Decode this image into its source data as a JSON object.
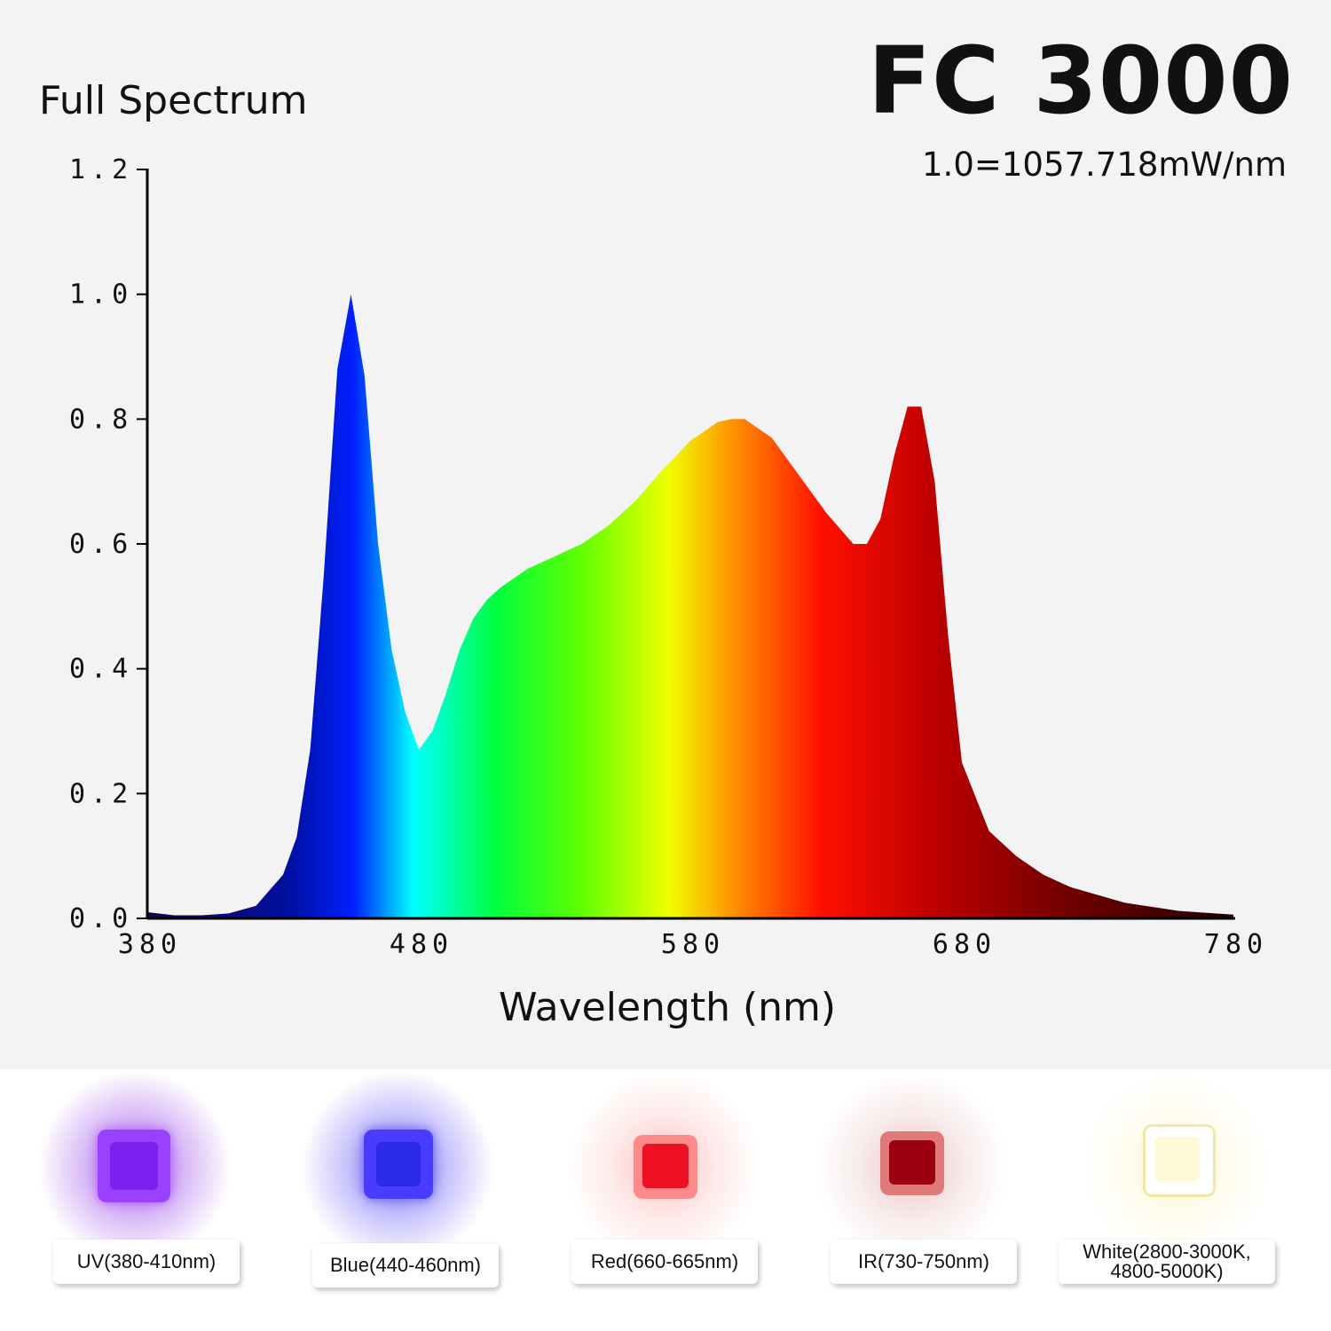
{
  "header": {
    "subtitle": "Full Spectrum",
    "product": "FC 3000",
    "scale_note": "1.0=1057.718mW/nm"
  },
  "chart_data": {
    "type": "area",
    "title": "Full Spectrum",
    "xlabel": "Wavelength (nm)",
    "ylabel": "",
    "xlim": [
      380,
      780
    ],
    "ylim": [
      0,
      1.2
    ],
    "xticks": [
      "380",
      "480",
      "580",
      "680",
      "780"
    ],
    "yticks": [
      "0.0",
      "0.2",
      "0.4",
      "0.6",
      "0.8",
      "1.0",
      "1.2"
    ],
    "grid": false,
    "series": [
      {
        "x": [
          380,
          390,
          400,
          410,
          420,
          430,
          435,
          440,
          445,
          450,
          455,
          460,
          465,
          470,
          475,
          480,
          485,
          490,
          495,
          500,
          505,
          510,
          515,
          520,
          525,
          530,
          540,
          550,
          560,
          570,
          580,
          590,
          595,
          600,
          610,
          620,
          630,
          640,
          645,
          650,
          655,
          660,
          665,
          670,
          675,
          680,
          690,
          700,
          710,
          720,
          740,
          760,
          780
        ],
        "values": [
          0.01,
          0.005,
          0.005,
          0.008,
          0.02,
          0.07,
          0.13,
          0.27,
          0.55,
          0.88,
          1.0,
          0.87,
          0.6,
          0.43,
          0.33,
          0.27,
          0.3,
          0.36,
          0.43,
          0.48,
          0.51,
          0.53,
          0.545,
          0.56,
          0.57,
          0.58,
          0.6,
          0.63,
          0.67,
          0.72,
          0.765,
          0.795,
          0.8,
          0.8,
          0.77,
          0.71,
          0.65,
          0.6,
          0.6,
          0.64,
          0.74,
          0.82,
          0.82,
          0.7,
          0.45,
          0.25,
          0.14,
          0.1,
          0.07,
          0.05,
          0.025,
          0.012,
          0.006
        ]
      }
    ]
  },
  "chips": [
    {
      "label": "UV(380-410nm)",
      "color": "#8a2be2"
    },
    {
      "label": "Blue(440-460nm)",
      "color": "#3a2af0"
    },
    {
      "label": "Red(660-665nm)",
      "color": "#ee1122"
    },
    {
      "label": "IR(730-750nm)",
      "color": "#a00010"
    },
    {
      "label": "White(2800-3000K, 4800-5000K)",
      "color": "#fff6c8"
    }
  ]
}
